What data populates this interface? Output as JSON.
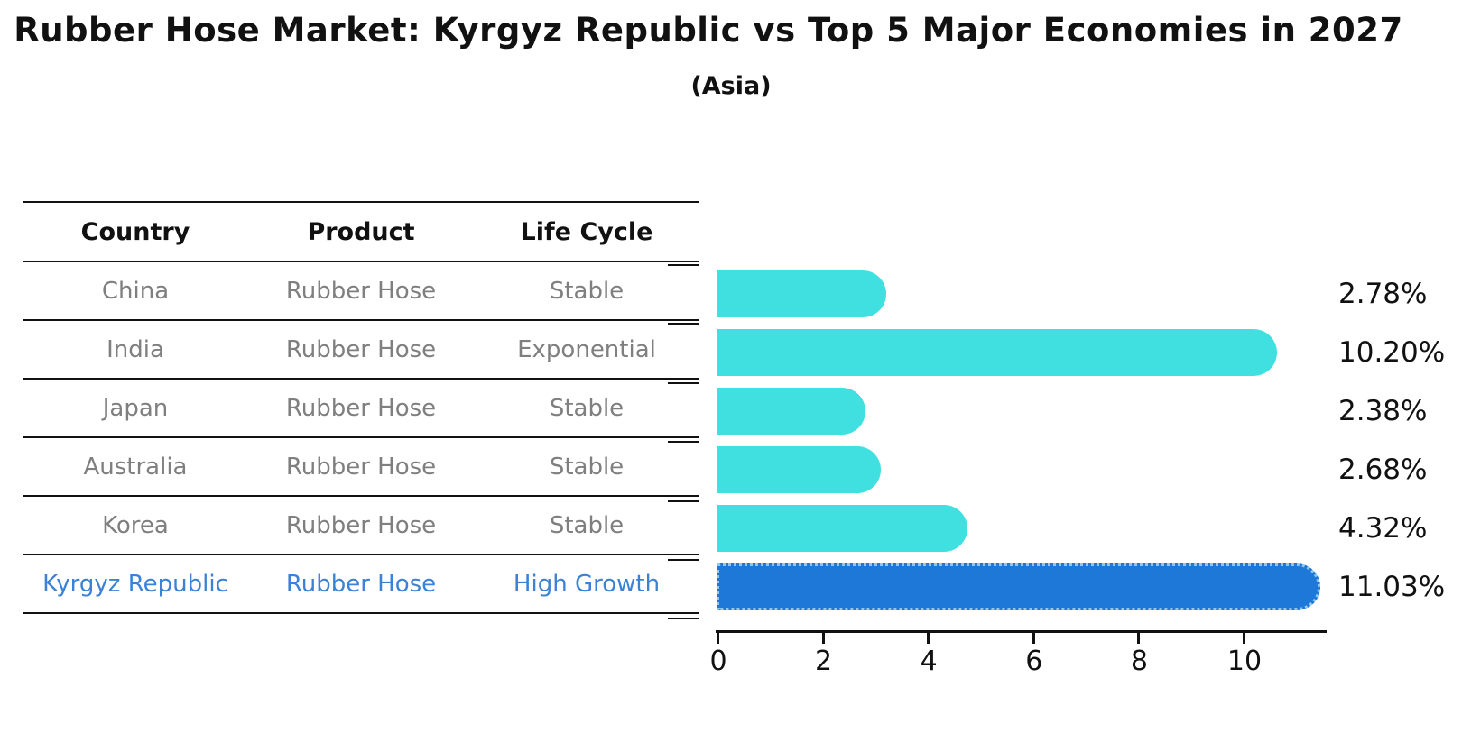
{
  "header": {
    "title": "Rubber Hose Market: Kyrgyz Republic vs Top 5 Major Economies in 2027",
    "subtitle": "(Asia)"
  },
  "table": {
    "columns": [
      "Country",
      "Product",
      "Life Cycle"
    ],
    "rows": [
      {
        "country": "China",
        "product": "Rubber Hose",
        "life_cycle": "Stable",
        "highlight": false
      },
      {
        "country": "India",
        "product": "Rubber Hose",
        "life_cycle": "Exponential",
        "highlight": false
      },
      {
        "country": "Japan",
        "product": "Rubber Hose",
        "life_cycle": "Stable",
        "highlight": false
      },
      {
        "country": "Australia",
        "product": "Rubber Hose",
        "life_cycle": "Stable",
        "highlight": false
      },
      {
        "country": "Korea",
        "product": "Rubber Hose",
        "life_cycle": "Stable",
        "highlight": false
      },
      {
        "country": "Kyrgyz Republic",
        "product": "Rubber Hose",
        "life_cycle": "High Growth",
        "highlight": true
      }
    ]
  },
  "chart_data": {
    "type": "bar",
    "orientation": "horizontal",
    "title": "Rubber Hose Market: Kyrgyz Republic vs Top 5 Major Economies in 2027",
    "subtitle": "(Asia)",
    "categories": [
      "China",
      "India",
      "Japan",
      "Australia",
      "Korea",
      "Kyrgyz Republic"
    ],
    "values": [
      2.78,
      10.2,
      2.38,
      2.68,
      4.32,
      11.03
    ],
    "bar_labels": [
      "2.78%",
      "10.20%",
      "2.38%",
      "2.68%",
      "4.32%",
      "11.03%"
    ],
    "x_ticks": [
      0,
      2,
      4,
      6,
      8,
      10
    ],
    "x_tick_labels": [
      "0",
      "2",
      "4",
      "6",
      "8",
      "10"
    ],
    "xlim": [
      0,
      11.6
    ],
    "grid": false,
    "legend": false,
    "highlight_index": 5,
    "colors": {
      "bar": "#40E0E0",
      "highlight_bar": "#1E78D8",
      "highlight_bar_edge": "#8CC8F2",
      "highlight_text": "#3B82D6",
      "table_text": "#7F7F7F",
      "axis_text": "#111111"
    }
  }
}
